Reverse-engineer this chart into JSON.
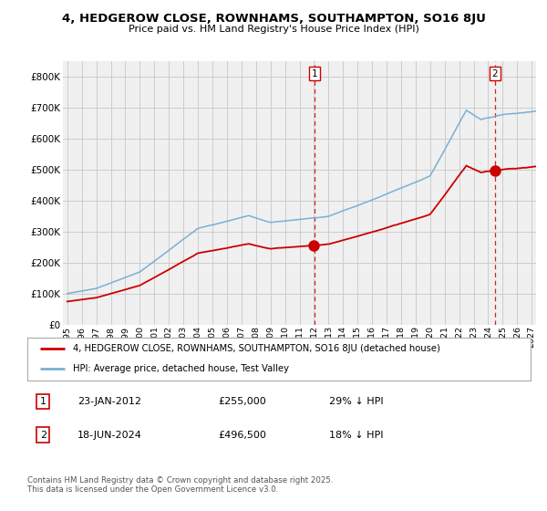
{
  "title": "4, HEDGEROW CLOSE, ROWNHAMS, SOUTHAMPTON, SO16 8JU",
  "subtitle": "Price paid vs. HM Land Registry's House Price Index (HPI)",
  "legend_label1": "4, HEDGEROW CLOSE, ROWNHAMS, SOUTHAMPTON, SO16 8JU (detached house)",
  "legend_label2": "HPI: Average price, detached house, Test Valley",
  "annotation1_label": "1",
  "annotation1_date": "23-JAN-2012",
  "annotation1_price": "£255,000",
  "annotation1_hpi": "29% ↓ HPI",
  "annotation2_label": "2",
  "annotation2_date": "18-JUN-2024",
  "annotation2_price": "£496,500",
  "annotation2_hpi": "18% ↓ HPI",
  "footer": "Contains HM Land Registry data © Crown copyright and database right 2025.\nThis data is licensed under the Open Government Licence v3.0.",
  "red_color": "#cc0000",
  "blue_color": "#7ab0d4",
  "vline_color": "#cc0000",
  "grid_color": "#cccccc",
  "bg_color": "#ffffff",
  "plot_bg_color": "#f0f0f0",
  "ylim_min": 0,
  "ylim_max": 850000,
  "sale1_t": 2012.04,
  "sale2_t": 2024.46,
  "sale1_price": 255000,
  "sale2_price": 496500
}
